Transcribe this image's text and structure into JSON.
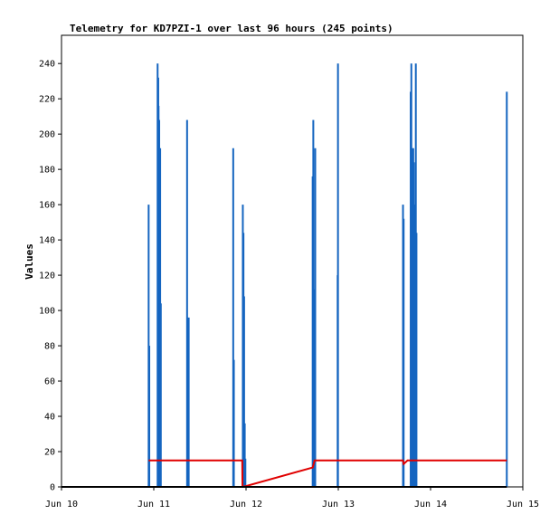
{
  "chart_data": {
    "type": "bar",
    "title": "Telemetry for KD7PZI-1 over last 96 hours (245 points)",
    "xlabel": "",
    "ylabel": "Values",
    "x_axis": {
      "type": "date",
      "range": [
        "2024-06-10T00:00",
        "2024-06-15T00:00"
      ],
      "ticks": [
        {
          "t": "2024-06-10T00:00",
          "label": "Jun 10"
        },
        {
          "t": "2024-06-11T00:00",
          "label": "Jun 11"
        },
        {
          "t": "2024-06-12T00:00",
          "label": "Jun 12"
        },
        {
          "t": "2024-06-13T00:00",
          "label": "Jun 13"
        },
        {
          "t": "2024-06-14T00:00",
          "label": "Jun 14"
        },
        {
          "t": "2024-06-15T00:00",
          "label": "Jun 15"
        }
      ]
    },
    "y_axis": {
      "range": [
        0,
        256
      ],
      "ticks": [
        0,
        20,
        40,
        60,
        80,
        100,
        120,
        140,
        160,
        180,
        200,
        220,
        240
      ]
    },
    "grid": false,
    "legend": "none",
    "colors": {
      "bars": "#1565c0",
      "red_line": "#e00000",
      "baseline": "#000000",
      "axes": "#000000"
    },
    "series": [
      {
        "style": "bars",
        "color": "#1565c0",
        "points": [
          {
            "t": "2024-06-10T22:40",
            "v": 160
          },
          {
            "t": "2024-06-10T22:50",
            "v": 80
          },
          {
            "t": "2024-06-11T01:00",
            "v": 240
          },
          {
            "t": "2024-06-11T01:10",
            "v": 232
          },
          {
            "t": "2024-06-11T01:15",
            "v": 216
          },
          {
            "t": "2024-06-11T01:25",
            "v": 208
          },
          {
            "t": "2024-06-11T01:30",
            "v": 104
          },
          {
            "t": "2024-06-11T01:40",
            "v": 192
          },
          {
            "t": "2024-06-11T01:50",
            "v": 104
          },
          {
            "t": "2024-06-11T08:40",
            "v": 208
          },
          {
            "t": "2024-06-11T08:45",
            "v": 96
          },
          {
            "t": "2024-06-11T08:50",
            "v": 16
          },
          {
            "t": "2024-06-11T09:05",
            "v": 96
          },
          {
            "t": "2024-06-11T20:40",
            "v": 192
          },
          {
            "t": "2024-06-11T20:50",
            "v": 72
          },
          {
            "t": "2024-06-11T23:10",
            "v": 160
          },
          {
            "t": "2024-06-11T23:20",
            "v": 144
          },
          {
            "t": "2024-06-11T23:30",
            "v": 108
          },
          {
            "t": "2024-06-11T23:40",
            "v": 36
          },
          {
            "t": "2024-06-11T23:50",
            "v": 16
          },
          {
            "t": "2024-06-12T17:20",
            "v": 176
          },
          {
            "t": "2024-06-12T17:30",
            "v": 208
          },
          {
            "t": "2024-06-12T17:40",
            "v": 96
          },
          {
            "t": "2024-06-12T17:50",
            "v": 112
          },
          {
            "t": "2024-06-12T18:00",
            "v": 192
          },
          {
            "t": "2024-06-12T23:50",
            "v": 120
          },
          {
            "t": "2024-06-12T23:55",
            "v": 240
          },
          {
            "t": "2024-06-13T16:50",
            "v": 160
          },
          {
            "t": "2024-06-13T17:00",
            "v": 152
          },
          {
            "t": "2024-06-13T18:50",
            "v": 224
          },
          {
            "t": "2024-06-13T19:00",
            "v": 240
          },
          {
            "t": "2024-06-13T19:10",
            "v": 192
          },
          {
            "t": "2024-06-13T19:20",
            "v": 40
          },
          {
            "t": "2024-06-13T19:30",
            "v": 192
          },
          {
            "t": "2024-06-13T19:40",
            "v": 184
          },
          {
            "t": "2024-06-13T19:50",
            "v": 160
          },
          {
            "t": "2024-06-13T20:10",
            "v": 240
          },
          {
            "t": "2024-06-13T20:20",
            "v": 144
          },
          {
            "t": "2024-06-14T19:50",
            "v": 224
          }
        ]
      },
      {
        "style": "line",
        "color": "#e00000",
        "points": [
          {
            "t": "2024-06-10T22:40",
            "v": 15
          },
          {
            "t": "2024-06-11T23:00",
            "v": 15
          },
          {
            "t": "2024-06-11T23:05",
            "v": 0
          },
          {
            "t": "2024-06-11T23:15",
            "v": 0
          },
          {
            "t": "2024-06-12T17:20",
            "v": 11
          },
          {
            "t": "2024-06-12T17:50",
            "v": 15
          },
          {
            "t": "2024-06-13T16:50",
            "v": 15
          },
          {
            "t": "2024-06-13T17:00",
            "v": 13
          },
          {
            "t": "2024-06-13T18:00",
            "v": 15
          },
          {
            "t": "2024-06-14T19:50",
            "v": 15
          }
        ]
      },
      {
        "style": "line",
        "color": "#000000",
        "points": [
          {
            "t": "2024-06-10T00:00",
            "v": 0
          },
          {
            "t": "2024-06-14T19:50",
            "v": 0
          }
        ]
      }
    ]
  }
}
